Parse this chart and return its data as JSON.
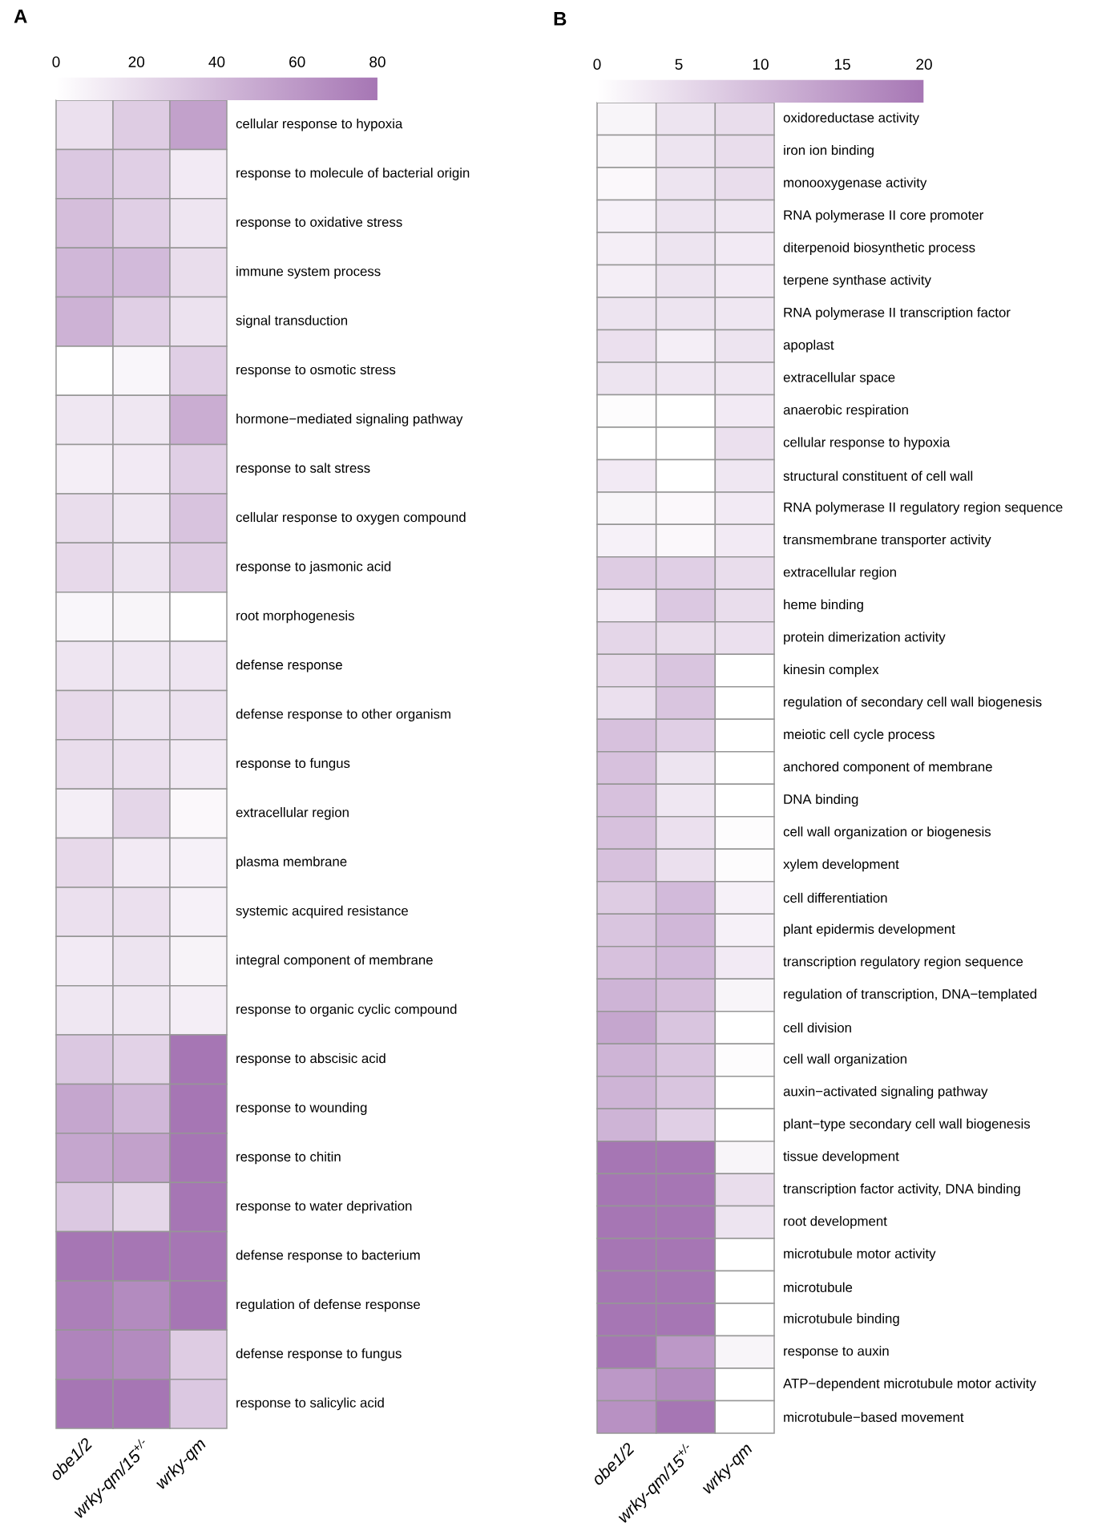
{
  "chart_data": [
    {
      "type": "heatmap",
      "title": "A",
      "categories": [
        "obe1/2",
        "wrky-qm/15$^{+/-}$",
        "wrky-qm"
      ],
      "y_categories": [
        "cellular response to hypoxia",
        "response to molecule of bacterial origin",
        "response to oxidative stress",
        "immune system process",
        "signal transduction",
        "response to osmotic stress",
        "hormone−mediated signaling pathway",
        "response to salt stress",
        "cellular response to oxygen compound",
        "response to jasmonic acid",
        "root morphogenesis",
        "defense response",
        "defense response to other organism",
        "response to fungus",
        "extracellular region",
        "plasma membrane",
        "systemic acquired resistance",
        "integral component of membrane",
        "response to organic cyclic compound",
        "response to abscisic acid",
        "response to wounding",
        "response to chitin",
        "response to water deprivation",
        "defense response to bacterium",
        "regulation of defense response",
        "defense response to fungus",
        "response to salicylic acid"
      ],
      "cells": [
        [
          18,
          30,
          55
        ],
        [
          32,
          28,
          12
        ],
        [
          38,
          28,
          15
        ],
        [
          42,
          40,
          20
        ],
        [
          45,
          28,
          17
        ],
        [
          0,
          5,
          28
        ],
        [
          14,
          14,
          48
        ],
        [
          10,
          12,
          28
        ],
        [
          20,
          14,
          35
        ],
        [
          22,
          16,
          30
        ],
        [
          5,
          6,
          0
        ],
        [
          15,
          14,
          15
        ],
        [
          22,
          16,
          17
        ],
        [
          20,
          18,
          13
        ],
        [
          10,
          24,
          4
        ],
        [
          22,
          12,
          8
        ],
        [
          18,
          18,
          8
        ],
        [
          12,
          16,
          7
        ],
        [
          14,
          14,
          10
        ],
        [
          32,
          26,
          80
        ],
        [
          52,
          42,
          80
        ],
        [
          52,
          55,
          80
        ],
        [
          32,
          24,
          80
        ],
        [
          80,
          80,
          80
        ],
        [
          75,
          68,
          80
        ],
        [
          72,
          68,
          30
        ],
        [
          80,
          80,
          32
        ]
      ],
      "clim": [
        0,
        80
      ],
      "cticks": [
        0,
        20,
        40,
        60,
        80
      ],
      "color": "#a676b4"
    },
    {
      "type": "heatmap",
      "title": "B",
      "categories": [
        "obe1/2",
        "wrky-qm/15$^{+/-}$",
        "wrky-qm"
      ],
      "y_categories": [
        "oxidoreductase activity",
        "iron ion binding",
        "monooxygenase activity",
        "RNA polymerase II core promoter",
        "diterpenoid biosynthetic process",
        "terpene synthase activity",
        "RNA polymerase II transcription factor",
        "apoplast",
        "extracellular space",
        "anaerobic respiration",
        "cellular response to hypoxia",
        "structural constituent of cell wall",
        "RNA polymerase II regulatory region sequence",
        "transmembrane transporter activity",
        "extracellular region",
        "heme binding",
        "protein dimerization activity",
        "kinesin complex",
        "regulation of secondary cell wall biogenesis",
        "meiotic cell cycle process",
        "anchored component of membrane",
        "DNA binding",
        "cell wall organization or biogenesis",
        "xylem development",
        "cell differentiation",
        "plant epidermis development",
        "transcription regulatory region sequence",
        "regulation of transcription, DNA−templated",
        "cell division",
        "cell wall organization",
        "auxin−activated signaling pathway",
        "plant−type secondary cell wall biogenesis",
        "tissue development",
        "transcription factor activity, DNA binding",
        "root development",
        "microtubule motor activity",
        "microtubule",
        "microtubule binding",
        "response to auxin",
        "ATP−dependent microtubule motor activity",
        "microtubule−based movement"
      ],
      "cells": [
        [
          1.5,
          4,
          5
        ],
        [
          1.5,
          4,
          5
        ],
        [
          1,
          4,
          5
        ],
        [
          2,
          4,
          3.5
        ],
        [
          2.5,
          4,
          3
        ],
        [
          2.5,
          4,
          3
        ],
        [
          4,
          4,
          3.5
        ],
        [
          4.5,
          2.5,
          4
        ],
        [
          4,
          3.5,
          3.5
        ],
        [
          0.5,
          0,
          3
        ],
        [
          0,
          0,
          4.5
        ],
        [
          3,
          0,
          3.5
        ],
        [
          1.5,
          1,
          3
        ],
        [
          2,
          1,
          3
        ],
        [
          7.5,
          7,
          5
        ],
        [
          3,
          8,
          5
        ],
        [
          6,
          5,
          4.5
        ],
        [
          5.5,
          8.5,
          0
        ],
        [
          4.5,
          8.5,
          0
        ],
        [
          9,
          7,
          0
        ],
        [
          9,
          4,
          0
        ],
        [
          9,
          3.5,
          0
        ],
        [
          9,
          4.5,
          0.5
        ],
        [
          9,
          4.5,
          0.5
        ],
        [
          7.5,
          10,
          2
        ],
        [
          8.5,
          10.5,
          2
        ],
        [
          9,
          10,
          3
        ],
        [
          11,
          9.5,
          1.5
        ],
        [
          13,
          8.5,
          0
        ],
        [
          11,
          8.5,
          0.5
        ],
        [
          11,
          8.5,
          0
        ],
        [
          11,
          7,
          0
        ],
        [
          20,
          20,
          1.5
        ],
        [
          20,
          20,
          5
        ],
        [
          20,
          20,
          4
        ],
        [
          20,
          20,
          0
        ],
        [
          20,
          20,
          0
        ],
        [
          20,
          20,
          0
        ],
        [
          20,
          15,
          1.5
        ],
        [
          15,
          17,
          0
        ],
        [
          16,
          20,
          0
        ]
      ],
      "clim": [
        0,
        20
      ],
      "cticks": [
        0,
        5,
        10,
        15,
        20
      ],
      "color": "#a676b4"
    }
  ]
}
